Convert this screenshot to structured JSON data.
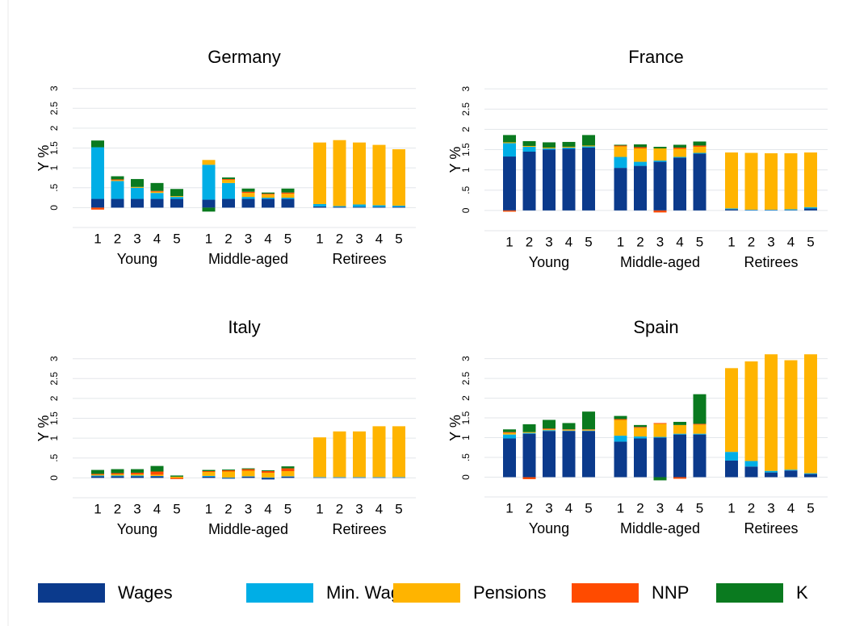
{
  "legend": [
    {
      "name": "Wages",
      "color": "#0b3a8c"
    },
    {
      "name": "Min. Wage",
      "color": "#00aee6"
    },
    {
      "name": "Pensions",
      "color": "#ffb400"
    },
    {
      "name": "NNP",
      "color": "#ff4b00"
    },
    {
      "name": "K",
      "color": "#0a7a1f"
    }
  ],
  "chart_data": [
    {
      "type": "bar",
      "title": "Germany",
      "ylabel": "Y %",
      "categories": [
        "1",
        "2",
        "3",
        "4",
        "5",
        "1",
        "2",
        "3",
        "4",
        "5",
        "1",
        "2",
        "3",
        "4",
        "5"
      ],
      "groups": [
        "Young",
        "Middle-aged",
        "Retirees"
      ],
      "ylim": [
        -0.5,
        3.4
      ],
      "yticks": [
        0,
        {
          "value": 0.5,
          "label": ".5"
        },
        1,
        1.5,
        2,
        2.5,
        3
      ],
      "grid": true,
      "series": [
        {
          "values": [
            0.22,
            0.22,
            0.22,
            0.22,
            0.22,
            0.2,
            0.22,
            0.22,
            0.22,
            0.22,
            0.03,
            0.02,
            0.02,
            0.02,
            0.02
          ]
        },
        {
          "values": [
            1.3,
            0.45,
            0.28,
            0.15,
            0.05,
            0.88,
            0.4,
            0.05,
            0.03,
            0.03,
            0.06,
            0.02,
            0.06,
            0.04,
            0.03
          ]
        },
        {
          "values": [
            0,
            0.02,
            0.02,
            0.03,
            0.02,
            0.12,
            0.08,
            0.1,
            0.08,
            0.1,
            1.55,
            1.66,
            1.56,
            1.52,
            1.42
          ]
        },
        {
          "values": [
            -0.05,
            0.02,
            0,
            0.02,
            0,
            0,
            0.02,
            0.03,
            0.02,
            0.03,
            0,
            0,
            0,
            0,
            0
          ]
        },
        {
          "values": [
            0.17,
            0.08,
            0.2,
            0.2,
            0.18,
            -0.1,
            0.04,
            0.08,
            0.03,
            0.1,
            0,
            0,
            0,
            0,
            0
          ]
        }
      ]
    },
    {
      "type": "bar",
      "title": "France",
      "ylabel": "Y %",
      "categories": [
        "1",
        "2",
        "3",
        "4",
        "5",
        "1",
        "2",
        "3",
        "4",
        "5",
        "1",
        "2",
        "3",
        "4",
        "5"
      ],
      "groups": [
        "Young",
        "Middle-aged",
        "Retirees"
      ],
      "ylim": [
        -0.5,
        3.4
      ],
      "yticks": [
        0,
        {
          "value": 0.5,
          "label": ".5"
        },
        1,
        1.5,
        2,
        2.5,
        3
      ],
      "grid": true,
      "series": [
        {
          "values": [
            1.33,
            1.45,
            1.5,
            1.52,
            1.55,
            1.05,
            1.1,
            1.2,
            1.3,
            1.4,
            0.03,
            0.01,
            0.01,
            0.01,
            0.05
          ]
        },
        {
          "values": [
            0.33,
            0.12,
            0.03,
            0.03,
            0.03,
            0.27,
            0.1,
            0.03,
            0.02,
            0.02,
            0.02,
            0.01,
            0.01,
            0.02,
            0.03
          ]
        },
        {
          "values": [
            0.02,
            0.02,
            0.02,
            0.02,
            0.02,
            0.26,
            0.33,
            0.3,
            0.2,
            0.15,
            1.38,
            1.4,
            1.39,
            1.38,
            1.35
          ]
        },
        {
          "values": [
            -0.03,
            0,
            0,
            0,
            0,
            0.02,
            0.03,
            -0.05,
            0.03,
            0.03,
            0,
            0,
            0,
            0,
            0
          ]
        },
        {
          "values": [
            0.18,
            0.12,
            0.13,
            0.12,
            0.26,
            0.02,
            0.07,
            0.04,
            0.07,
            0.1,
            0,
            0,
            0,
            0,
            0
          ]
        }
      ]
    },
    {
      "type": "bar",
      "title": "Italy",
      "ylabel": "Y %",
      "categories": [
        "1",
        "2",
        "3",
        "4",
        "5",
        "1",
        "2",
        "3",
        "4",
        "5",
        "1",
        "2",
        "3",
        "4",
        "5"
      ],
      "groups": [
        "Young",
        "Middle-aged",
        "Retirees"
      ],
      "ylim": [
        -0.5,
        3.4
      ],
      "yticks": [
        0,
        {
          "value": 0.5,
          "label": ".5"
        },
        1,
        1.5,
        2,
        2.5,
        3
      ],
      "grid": true,
      "series": [
        {
          "values": [
            0.04,
            0.04,
            0.04,
            0.04,
            0,
            0.03,
            -0.02,
            0.03,
            -0.04,
            0.03,
            0.01,
            0.01,
            0.01,
            0.01,
            0.01
          ]
        },
        {
          "values": [
            0.02,
            0.02,
            0.02,
            0.01,
            0,
            0.02,
            0.01,
            0.01,
            0.01,
            0.01,
            0.01,
            0.01,
            0.01,
            0.01,
            0.01
          ]
        },
        {
          "values": [
            0.02,
            0.03,
            0.03,
            0.03,
            0.03,
            0.1,
            0.15,
            0.14,
            0.12,
            0.13,
            1.0,
            1.15,
            1.15,
            1.28,
            1.28
          ]
        },
        {
          "values": [
            0.02,
            0.03,
            0.04,
            0.08,
            -0.03,
            0.02,
            0.03,
            0.04,
            0.04,
            0.07,
            0,
            0,
            0,
            0,
            0
          ]
        },
        {
          "values": [
            0.1,
            0.1,
            0.09,
            0.14,
            0.03,
            0.03,
            0.02,
            0.02,
            0.02,
            0.05,
            0,
            0,
            0,
            0,
            0
          ]
        }
      ]
    },
    {
      "type": "bar",
      "title": "Spain",
      "ylabel": "Y %",
      "categories": [
        "1",
        "2",
        "3",
        "4",
        "5",
        "1",
        "2",
        "3",
        "4",
        "5",
        "1",
        "2",
        "3",
        "4",
        "5"
      ],
      "groups": [
        "Young",
        "Middle-aged",
        "Retirees"
      ],
      "ylim": [
        -0.5,
        3.4
      ],
      "yticks": [
        0,
        {
          "value": 0.5,
          "label": ".5"
        },
        1,
        1.5,
        2,
        2.5,
        3
      ],
      "grid": true,
      "series": [
        {
          "values": [
            0.98,
            1.1,
            1.17,
            1.17,
            1.17,
            0.9,
            0.98,
            1.0,
            1.08,
            1.08,
            0.42,
            0.27,
            0.12,
            0.17,
            0.08
          ]
        },
        {
          "values": [
            0.1,
            0.02,
            0.02,
            0.01,
            0.01,
            0.15,
            0.05,
            0.02,
            0.02,
            0.02,
            0.22,
            0.14,
            0.04,
            0.02,
            0.02
          ]
        },
        {
          "values": [
            0.04,
            0.02,
            0.02,
            0.02,
            0.02,
            0.4,
            0.22,
            0.33,
            0.22,
            0.23,
            2.12,
            2.52,
            2.95,
            2.77,
            3.01
          ]
        },
        {
          "values": [
            0.02,
            -0.05,
            0.02,
            0.01,
            0.01,
            0.02,
            0.02,
            0.02,
            -0.04,
            0.02,
            0,
            0,
            0,
            0,
            0
          ]
        },
        {
          "values": [
            0.07,
            0.2,
            0.22,
            0.16,
            0.45,
            0.08,
            0.05,
            -0.08,
            0.08,
            0.75,
            0,
            0,
            0,
            0,
            0
          ]
        }
      ]
    }
  ]
}
